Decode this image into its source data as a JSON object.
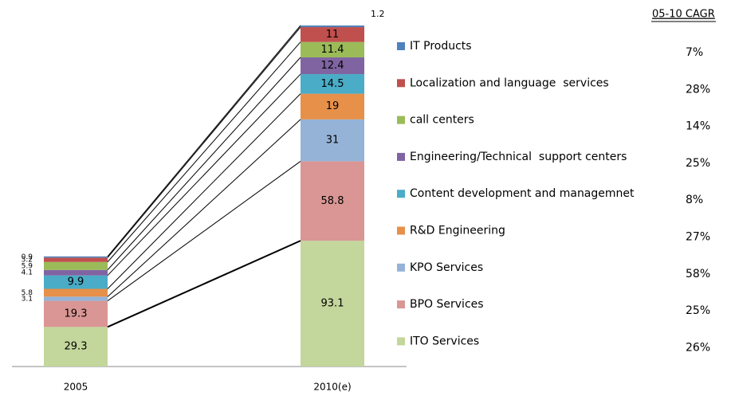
{
  "chart_data": {
    "type": "stacked_bar",
    "categories": [
      "2005",
      "2010(e)"
    ],
    "series": [
      {
        "name": "ITO Services",
        "color": "#c3d69b",
        "values": [
          29.3,
          93.1
        ]
      },
      {
        "name": "BPO Services",
        "color": "#d99694",
        "values": [
          19.3,
          58.8
        ]
      },
      {
        "name": "KPO Services",
        "color": "#95b3d7",
        "values": [
          3.1,
          31
        ]
      },
      {
        "name": "R&D Engineering",
        "color": "#e6904a",
        "values": [
          5.8,
          19
        ]
      },
      {
        "name": "Content development and managemnet",
        "color": "#4aacc6",
        "values": [
          9.9,
          14.5
        ]
      },
      {
        "name": "Engineering/Technical  support centers",
        "color": "#8064a2",
        "values": [
          4.1,
          12.4
        ]
      },
      {
        "name": "call centers",
        "color": "#9bbb59",
        "values": [
          5.9,
          11.4
        ]
      },
      {
        "name": "Localization and language  services",
        "color": "#c0504d",
        "values": [
          3.2,
          11
        ]
      },
      {
        "name": "IT Products",
        "color": "#4f81bd",
        "values": [
          0.9,
          1.2
        ]
      }
    ],
    "cagr": {
      "title": "05-10 CAGR",
      "values": [
        26,
        25,
        58,
        27,
        8,
        25,
        14,
        28,
        7
      ],
      "value_labels": [
        "26%",
        "25%",
        "58%",
        "27%",
        "8%",
        "25%",
        "14%",
        "28%",
        "7%"
      ]
    }
  }
}
